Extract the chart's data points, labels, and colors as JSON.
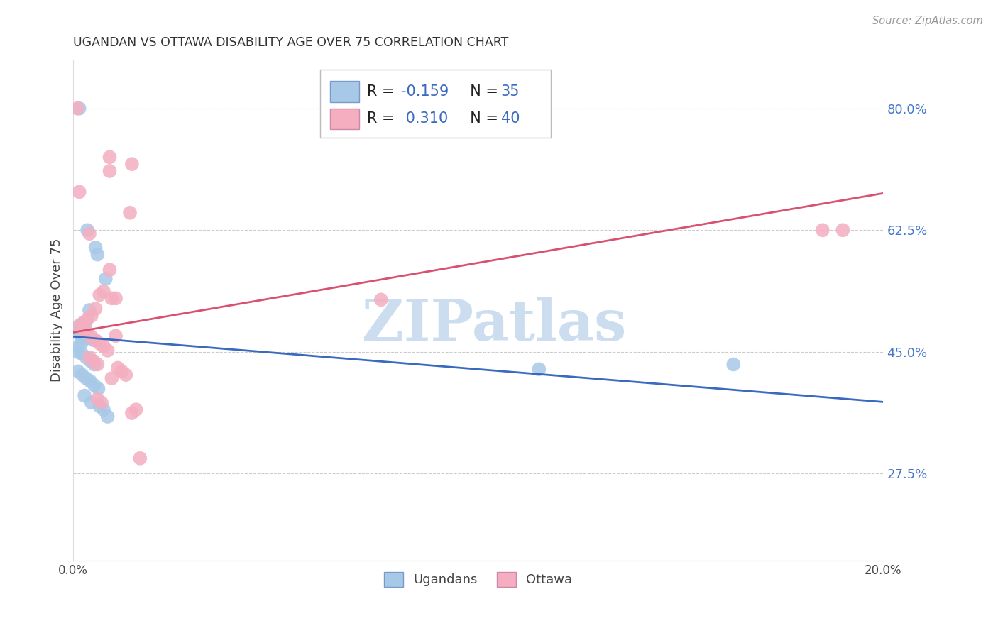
{
  "title": "UGANDAN VS OTTAWA DISABILITY AGE OVER 75 CORRELATION CHART",
  "source": "Source: ZipAtlas.com",
  "ylabel": "Disability Age Over 75",
  "xlim": [
    0.0,
    0.2
  ],
  "ylim": [
    0.15,
    0.87
  ],
  "yticks": [
    0.275,
    0.45,
    0.625,
    0.8
  ],
  "ytick_labels": [
    "27.5%",
    "45.0%",
    "62.5%",
    "80.0%"
  ],
  "xticks": [
    0.0,
    0.04,
    0.08,
    0.12,
    0.16,
    0.2
  ],
  "xtick_labels": [
    "0.0%",
    "",
    "",
    "",
    "",
    "20.0%"
  ],
  "ugandan_color": "#a8c8e8",
  "ottawa_color": "#f4aec0",
  "trendline_ugandan_color": "#3a6abf",
  "trendline_ottawa_color": "#d95070",
  "watermark": "ZIPatlas",
  "watermark_color": "#ccddf0",
  "ugandan_R": -0.159,
  "ugandan_N": 35,
  "ottawa_R": 0.31,
  "ottawa_N": 40,
  "ugandan_trendline": [
    [
      0.0,
      0.472
    ],
    [
      0.2,
      0.378
    ]
  ],
  "ottawa_trendline": [
    [
      0.0,
      0.478
    ],
    [
      0.2,
      0.678
    ]
  ],
  "ugandan_points": [
    [
      0.0015,
      0.8
    ],
    [
      0.0035,
      0.625
    ],
    [
      0.0055,
      0.6
    ],
    [
      0.006,
      0.59
    ],
    [
      0.008,
      0.555
    ],
    [
      0.004,
      0.51
    ],
    [
      0.003,
      0.49
    ],
    [
      0.0025,
      0.49
    ],
    [
      0.0015,
      0.488
    ],
    [
      0.001,
      0.483
    ],
    [
      0.0008,
      0.478
    ],
    [
      0.002,
      0.472
    ],
    [
      0.003,
      0.47
    ],
    [
      0.004,
      0.47
    ],
    [
      0.005,
      0.467
    ],
    [
      0.002,
      0.462
    ],
    [
      0.0012,
      0.457
    ],
    [
      0.001,
      0.45
    ],
    [
      0.0022,
      0.447
    ],
    [
      0.0032,
      0.442
    ],
    [
      0.0042,
      0.437
    ],
    [
      0.0052,
      0.432
    ],
    [
      0.0012,
      0.422
    ],
    [
      0.0022,
      0.417
    ],
    [
      0.0032,
      0.412
    ],
    [
      0.0042,
      0.408
    ],
    [
      0.0052,
      0.402
    ],
    [
      0.0062,
      0.397
    ],
    [
      0.0028,
      0.387
    ],
    [
      0.0045,
      0.377
    ],
    [
      0.0065,
      0.372
    ],
    [
      0.0075,
      0.367
    ],
    [
      0.0085,
      0.357
    ],
    [
      0.115,
      0.425
    ],
    [
      0.163,
      0.432
    ]
  ],
  "ottawa_points": [
    [
      0.001,
      0.8
    ],
    [
      0.0015,
      0.68
    ],
    [
      0.004,
      0.62
    ],
    [
      0.009,
      0.73
    ],
    [
      0.009,
      0.71
    ],
    [
      0.0145,
      0.72
    ],
    [
      0.014,
      0.65
    ],
    [
      0.009,
      0.568
    ],
    [
      0.0075,
      0.537
    ],
    [
      0.0065,
      0.532
    ],
    [
      0.0095,
      0.527
    ],
    [
      0.0055,
      0.512
    ],
    [
      0.0045,
      0.502
    ],
    [
      0.0035,
      0.497
    ],
    [
      0.0025,
      0.492
    ],
    [
      0.0015,
      0.487
    ],
    [
      0.0025,
      0.482
    ],
    [
      0.0035,
      0.477
    ],
    [
      0.0045,
      0.472
    ],
    [
      0.0055,
      0.467
    ],
    [
      0.0065,
      0.462
    ],
    [
      0.0075,
      0.458
    ],
    [
      0.0085,
      0.452
    ],
    [
      0.004,
      0.442
    ],
    [
      0.005,
      0.437
    ],
    [
      0.006,
      0.432
    ],
    [
      0.011,
      0.427
    ],
    [
      0.012,
      0.422
    ],
    [
      0.013,
      0.417
    ],
    [
      0.0095,
      0.412
    ],
    [
      0.0105,
      0.473
    ],
    [
      0.006,
      0.382
    ],
    [
      0.007,
      0.377
    ],
    [
      0.0155,
      0.367
    ],
    [
      0.0145,
      0.362
    ],
    [
      0.0105,
      0.527
    ],
    [
      0.0165,
      0.297
    ],
    [
      0.076,
      0.525
    ],
    [
      0.185,
      0.625
    ],
    [
      0.19,
      0.625
    ]
  ]
}
